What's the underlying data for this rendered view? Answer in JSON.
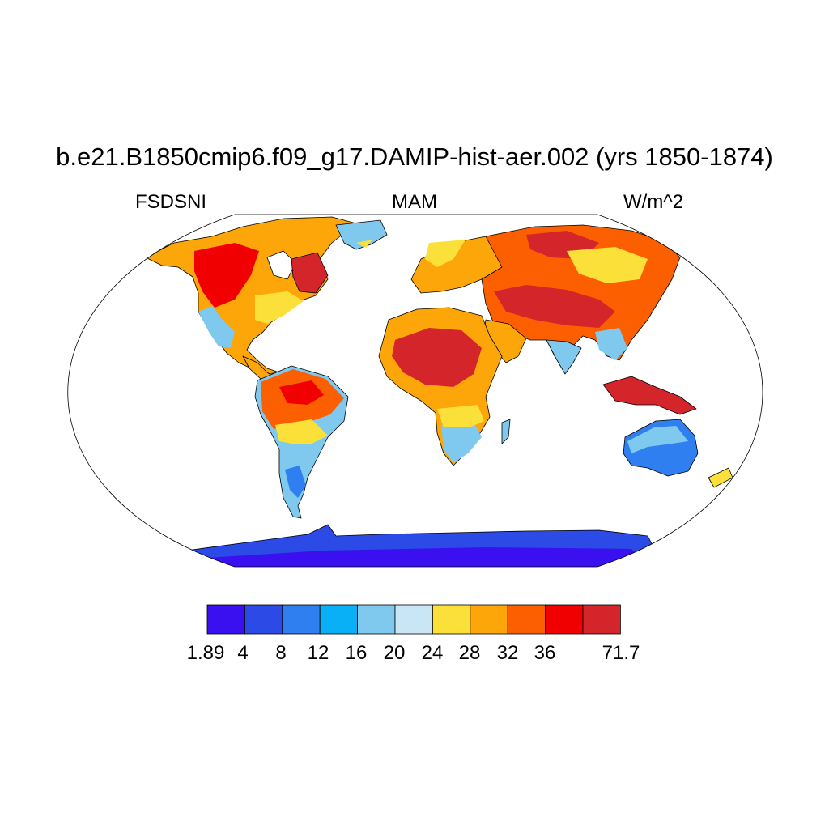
{
  "title": "b.e21.B1850cmip6.f09_g17.DAMIP-hist-aer.002 (yrs 1850-1874)",
  "variable": "FSDSNI",
  "season": "MAM",
  "units": "W/m^2",
  "colorbar": {
    "colors": [
      "#3a10f0",
      "#2b4ae6",
      "#2f7ff0",
      "#0ab0f6",
      "#7fc8ee",
      "#c9e6f7",
      "#fce03a",
      "#fca60a",
      "#fc5f00",
      "#f00000",
      "#d4262a"
    ],
    "labels": [
      "1.89",
      "4",
      "8",
      "12",
      "16",
      "20",
      "24",
      "28",
      "32",
      "36",
      "71.7"
    ]
  },
  "map_colors": {
    "ocean": "#ffffff",
    "coast": "#000000",
    "frame": "#000000"
  }
}
